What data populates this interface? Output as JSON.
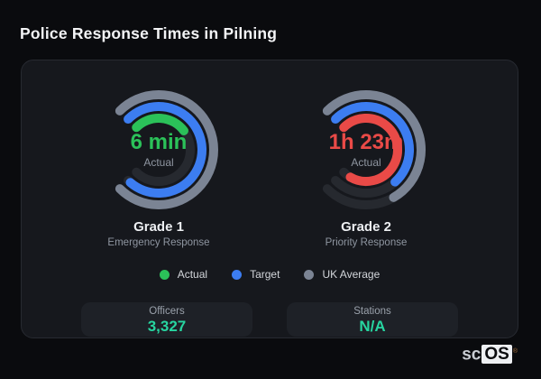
{
  "page": {
    "title": "Police Response Times in Pilning"
  },
  "colors": {
    "background": "#0a0b0e",
    "card_background": "#16181d",
    "card_border": "#272a31",
    "stat_box_background": "#1e2127",
    "accent_green": "#2bc159",
    "accent_blue": "#3c7df1",
    "accent_gray": "#7b8494",
    "accent_red": "#e94a47",
    "stat_value": "#27d5a0",
    "muted_text": "#8f96a1"
  },
  "chart_data": {
    "type": "radial-bar",
    "title": "Police Response Times in Pilning",
    "scale": {
      "start_deg": -45,
      "end_deg": 225,
      "full_sweep_deg": 270
    },
    "track_color": "#26292f",
    "stroke_width": 10,
    "legend": {
      "position": "bottom",
      "entries": [
        {
          "label": "Actual",
          "color": "#2bc159"
        },
        {
          "label": "Target",
          "color": "#3c7df1"
        },
        {
          "label": "UK Average",
          "color": "#7b8494"
        }
      ]
    },
    "gauges": [
      {
        "title": "Grade 1",
        "subtitle": "Emergency Response",
        "center_value": "6 min",
        "center_value_color": "#2bc159",
        "center_sublabel": "Actual",
        "rings": [
          {
            "series": "UK Average",
            "color": "#7b8494",
            "radius": 61,
            "end_deg": 225,
            "fill_pct": 100
          },
          {
            "series": "Target",
            "color": "#3c7df1",
            "radius": 48,
            "end_deg": 221,
            "fill_pct": 98
          },
          {
            "series": "Actual",
            "color": "#2bc159",
            "radius": 35,
            "end_deg": 53,
            "fill_pct": 36
          }
        ]
      },
      {
        "title": "Grade 2",
        "subtitle": "Priority Response",
        "center_value": "1h 23m",
        "center_value_color": "#e94a47",
        "center_sublabel": "Actual",
        "rings": [
          {
            "series": "UK Average",
            "color": "#7b8494",
            "radius": 61,
            "end_deg": 150,
            "fill_pct": 72
          },
          {
            "series": "Target",
            "color": "#3c7df1",
            "radius": 48,
            "end_deg": 138,
            "fill_pct": 68
          },
          {
            "series": "Actual",
            "color": "#e94a47",
            "radius": 35,
            "end_deg": 210,
            "fill_pct": 94
          }
        ]
      }
    ]
  },
  "stats": {
    "items": [
      {
        "label": "Officers",
        "value": "3,327"
      },
      {
        "label": "Stations",
        "value": "N/A"
      }
    ]
  },
  "brand": {
    "prefix": "sc",
    "suffix": "OS",
    "registered_mark": "®"
  }
}
